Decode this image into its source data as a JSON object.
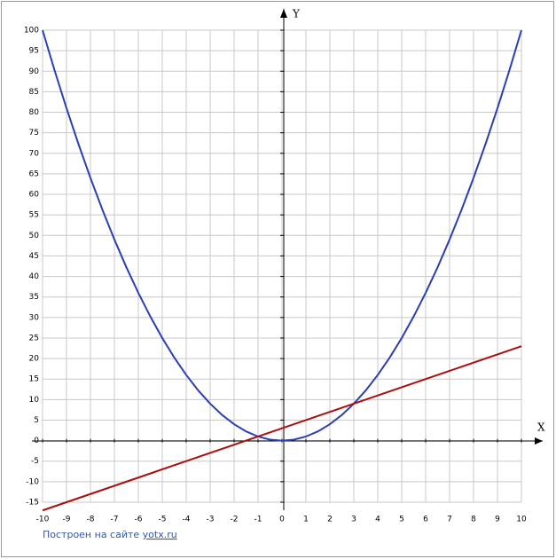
{
  "chart_data": {
    "type": "line",
    "x_axis_label": "X",
    "y_axis_label": "Y",
    "x": [
      -10,
      -9.5,
      -9,
      -8.5,
      -8,
      -7.5,
      -7,
      -6.5,
      -6,
      -5.5,
      -5,
      -4.5,
      -4,
      -3.5,
      -3,
      -2.5,
      -2,
      -1.5,
      -1,
      -0.5,
      0,
      0.5,
      1,
      1.5,
      2,
      2.5,
      3,
      3.5,
      4,
      4.5,
      5,
      5.5,
      6,
      6.5,
      7,
      7.5,
      8,
      8.5,
      9,
      9.5,
      10
    ],
    "series": [
      {
        "color": "#2b3fb3",
        "values": [
          100,
          90.25,
          81,
          72.25,
          64,
          56.25,
          49,
          42.25,
          36,
          30.25,
          25,
          20.25,
          16,
          12.25,
          9,
          6.25,
          4,
          2.25,
          1,
          0.25,
          0,
          0.25,
          1,
          2.25,
          4,
          6.25,
          9,
          12.25,
          16,
          20.25,
          25,
          30.25,
          36,
          42.25,
          49,
          56.25,
          64,
          72.25,
          81,
          90.25,
          100
        ]
      },
      {
        "color": "#a80f0f",
        "values": [
          -17,
          -16,
          -15,
          -14,
          -13,
          -12,
          -11,
          -10,
          -9,
          -8,
          -7,
          -6,
          -5,
          -4,
          -3,
          -2,
          -1,
          0,
          1,
          2,
          3,
          4,
          5,
          6,
          7,
          8,
          9,
          10,
          11,
          12,
          13,
          14,
          15,
          16,
          17,
          18,
          19,
          20,
          21,
          22,
          23
        ]
      }
    ],
    "xlim": [
      -10,
      10
    ],
    "ylim": [
      -15,
      100
    ],
    "xticks": [
      -10,
      -9,
      -8,
      -7,
      -6,
      -5,
      -4,
      -3,
      -2,
      -1,
      0,
      1,
      2,
      3,
      4,
      5,
      6,
      7,
      8,
      9,
      10
    ],
    "yticks": [
      -15,
      -10,
      -5,
      0,
      5,
      10,
      15,
      20,
      25,
      30,
      35,
      40,
      45,
      50,
      55,
      60,
      65,
      70,
      75,
      80,
      85,
      90,
      95,
      100
    ],
    "grid": true,
    "credit_text": "Построен на сайте",
    "credit_link": "yotx.ru"
  }
}
